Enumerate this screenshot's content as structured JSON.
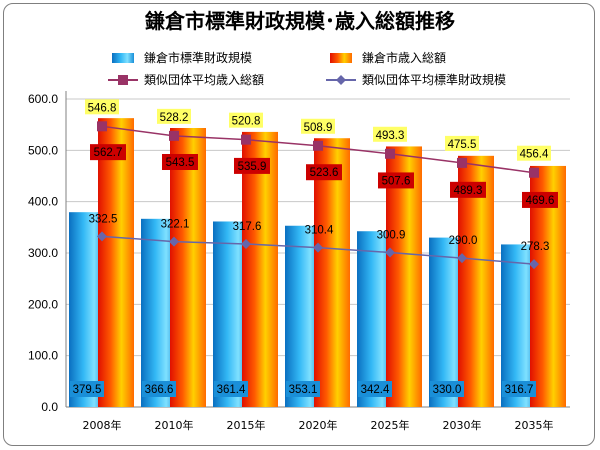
{
  "chart_data": {
    "type": "bar",
    "title": "鎌倉市標準財政規模･歳入総額推移",
    "categories": [
      "2008年",
      "2010年",
      "2015年",
      "2020年",
      "2025年",
      "2030年",
      "2035年"
    ],
    "ylim": [
      0,
      600
    ],
    "yticks": [
      "0.0",
      "100.0",
      "200.0",
      "300.0",
      "400.0",
      "500.0",
      "600.0"
    ],
    "grid": true,
    "legend_position": "top",
    "series": [
      {
        "name": "鎌倉市標準財政規模",
        "kind": "bar",
        "color": "#1fa8e8",
        "values": [
          379.5,
          366.6,
          361.4,
          353.1,
          342.4,
          330.0,
          316.7
        ],
        "labels": [
          "379.5",
          "366.6",
          "361.4",
          "353.1",
          "342.4",
          "330.0",
          "316.7"
        ]
      },
      {
        "name": "鎌倉市歳入総額",
        "kind": "bar",
        "color": "#ff3a00",
        "values": [
          562.7,
          543.5,
          535.9,
          523.6,
          507.6,
          489.3,
          469.6
        ],
        "labels": [
          "562.7",
          "543.5",
          "535.9",
          "523.6",
          "507.6",
          "489.3",
          "469.6"
        ]
      },
      {
        "name": "類似団体平均歳入総額",
        "kind": "line",
        "color": "#993366",
        "marker": "square",
        "values": [
          546.8,
          528.2,
          520.8,
          508.9,
          493.3,
          475.5,
          456.4
        ],
        "labels": [
          "546.8",
          "528.2",
          "520.8",
          "508.9",
          "493.3",
          "475.5",
          "456.4"
        ]
      },
      {
        "name": "類似団体平均標準財政規模",
        "kind": "line",
        "color": "#6666aa",
        "marker": "diamond",
        "values": [
          332.5,
          322.1,
          317.6,
          310.4,
          300.9,
          290.0,
          278.3
        ],
        "labels": [
          "332.5",
          "322.1",
          "317.6",
          "310.4",
          "300.9",
          "290.0",
          "278.3"
        ]
      }
    ]
  }
}
